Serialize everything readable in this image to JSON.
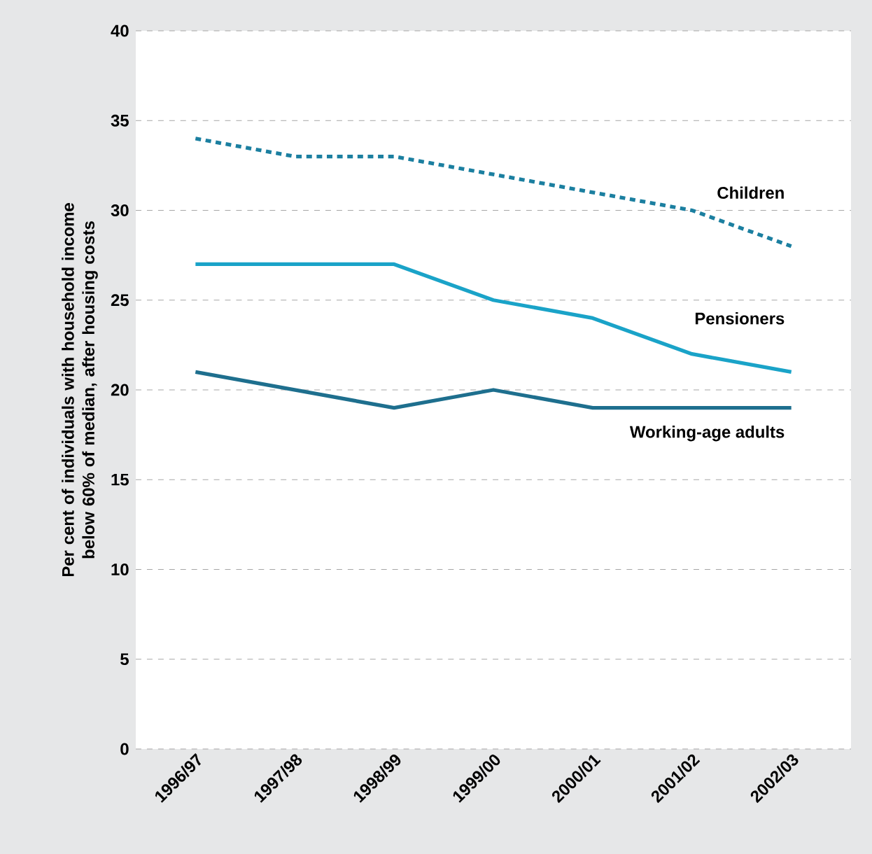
{
  "chart_data": {
    "type": "line",
    "ylabel": "Per cent of individuals with household income below 60% of median, after housing costs",
    "categories": [
      "1996/97",
      "1997/98",
      "1998/99",
      "1999/00",
      "2000/01",
      "2001/02",
      "2002/03"
    ],
    "series": [
      {
        "name": "Children",
        "color": "#1b7fa0",
        "line_style": "dashed",
        "values": [
          34,
          33,
          33,
          32,
          31,
          30,
          28
        ]
      },
      {
        "name": "Pensioners",
        "color": "#1aa3c8",
        "line_style": "solid",
        "values": [
          27,
          27,
          27,
          25,
          24,
          22,
          21
        ]
      },
      {
        "name": "Working-age adults",
        "color": "#1e6f8e",
        "line_style": "solid",
        "values": [
          21,
          20,
          19,
          20,
          19,
          19,
          19
        ]
      }
    ],
    "ylim": [
      0,
      40
    ],
    "yticks": [
      0,
      5,
      10,
      15,
      20,
      25,
      30,
      35,
      40
    ],
    "grid": "y",
    "legend": false
  }
}
